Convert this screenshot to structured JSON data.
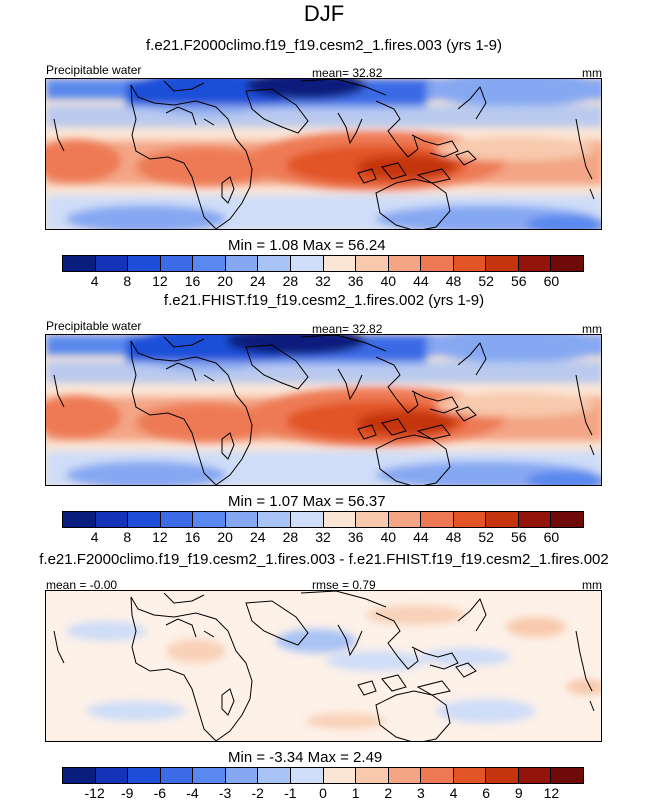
{
  "season": "DJF",
  "units": "mm",
  "panels": [
    {
      "id": "top",
      "case_title": "f.e21.F2000climo.f19_f19.cesm2_1.fires.003 (yrs 1-9)",
      "variable_label": "Precipitable water",
      "stat_label": "mean=  32.82",
      "units": "mm",
      "min_max": "Min =   1.08 Max =  56.24"
    },
    {
      "id": "middle",
      "case_title": "f.e21.FHIST.f19_f19.cesm2_1.fires.002 (yrs 1-9)",
      "variable_label": "Precipitable water",
      "stat_label": "mean=  32.82",
      "units": "mm",
      "min_max": "Min =   1.07 Max =  56.37"
    },
    {
      "id": "diff",
      "case_title": "f.e21.F2000climo.f19_f19.cesm2_1.fires.003 - f.e21.FHIST.f19_f19.cesm2_1.fires.002",
      "mean_label": "mean =  -0.00",
      "rmse_label": "rmse =   0.79",
      "units": "mm",
      "min_max": "Min =  -3.34 Max =   2.49"
    }
  ],
  "colorbars": {
    "absolute": {
      "ticks": [
        "4",
        "8",
        "12",
        "16",
        "20",
        "24",
        "28",
        "32",
        "36",
        "40",
        "44",
        "48",
        "52",
        "56",
        "60"
      ],
      "colors": [
        "#0a1d7c",
        "#1433b8",
        "#1f4fd8",
        "#3b6be6",
        "#5a88ee",
        "#86a8f2",
        "#a9c3f5",
        "#cfddf8",
        "#fbe6d6",
        "#f8c9ad",
        "#f3a585",
        "#ee7a55",
        "#e25527",
        "#c5340f",
        "#93140a",
        "#6e0a08"
      ]
    },
    "difference": {
      "ticks": [
        "-12",
        "-9",
        "-6",
        "-4",
        "-3",
        "-2",
        "-1",
        "0",
        "1",
        "2",
        "3",
        "4",
        "6",
        "9",
        "12"
      ],
      "colors": [
        "#0a1d7c",
        "#1433b8",
        "#1f4fd8",
        "#3b6be6",
        "#5a88ee",
        "#86a8f2",
        "#a9c3f5",
        "#cfddf8",
        "#fbe6d6",
        "#f8c9ad",
        "#f3a585",
        "#ee7a55",
        "#e25527",
        "#c5340f",
        "#93140a",
        "#6e0a08"
      ]
    }
  }
}
